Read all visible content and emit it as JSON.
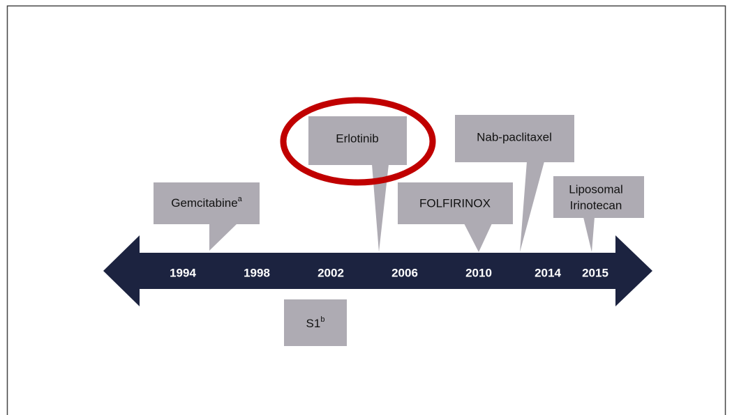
{
  "timeline": {
    "years": [
      "1994",
      "1998",
      "2002",
      "2006",
      "2010",
      "2014",
      "2015"
    ],
    "callouts": [
      {
        "label": "Gemcitabine",
        "sup": "a"
      },
      {
        "label": "Erlotinib"
      },
      {
        "label": "FOLFIRINOX"
      },
      {
        "label": "Nab-paclitaxel"
      },
      {
        "label": "Liposomal",
        "label2": "Irinotecan"
      },
      {
        "label": "S1",
        "sup": "b"
      }
    ]
  }
}
